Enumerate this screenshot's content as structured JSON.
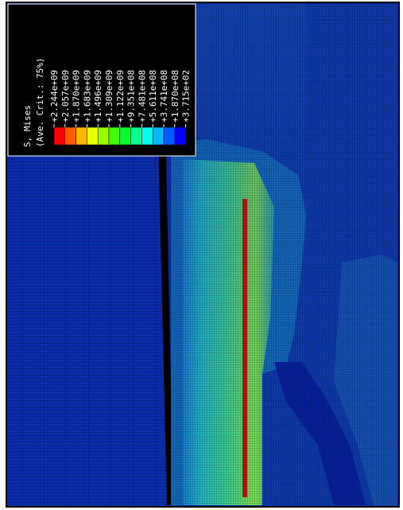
{
  "legend": {
    "title": "S, Mises",
    "subtitle": "(Ave. Crit.: 75%)",
    "labels": [
      "+2.244e+09",
      "+2.057e+09",
      "+1.870e+09",
      "+1.683e+09",
      "+1.496e+09",
      "+1.309e+09",
      "+1.122e+09",
      "+9.351e+08",
      "+7.481e+08",
      "+5.611e+08",
      "+3.741e+08",
      "+1.870e+08",
      "+3.715e+02"
    ],
    "colors": [
      "#ff0000",
      "#ff5c00",
      "#ffb900",
      "#e8ff00",
      "#9bff00",
      "#3fff00",
      "#00ff2e",
      "#00ff8b",
      "#00ffe8",
      "#00b9ff",
      "#005cff",
      "#0000ff"
    ]
  }
}
